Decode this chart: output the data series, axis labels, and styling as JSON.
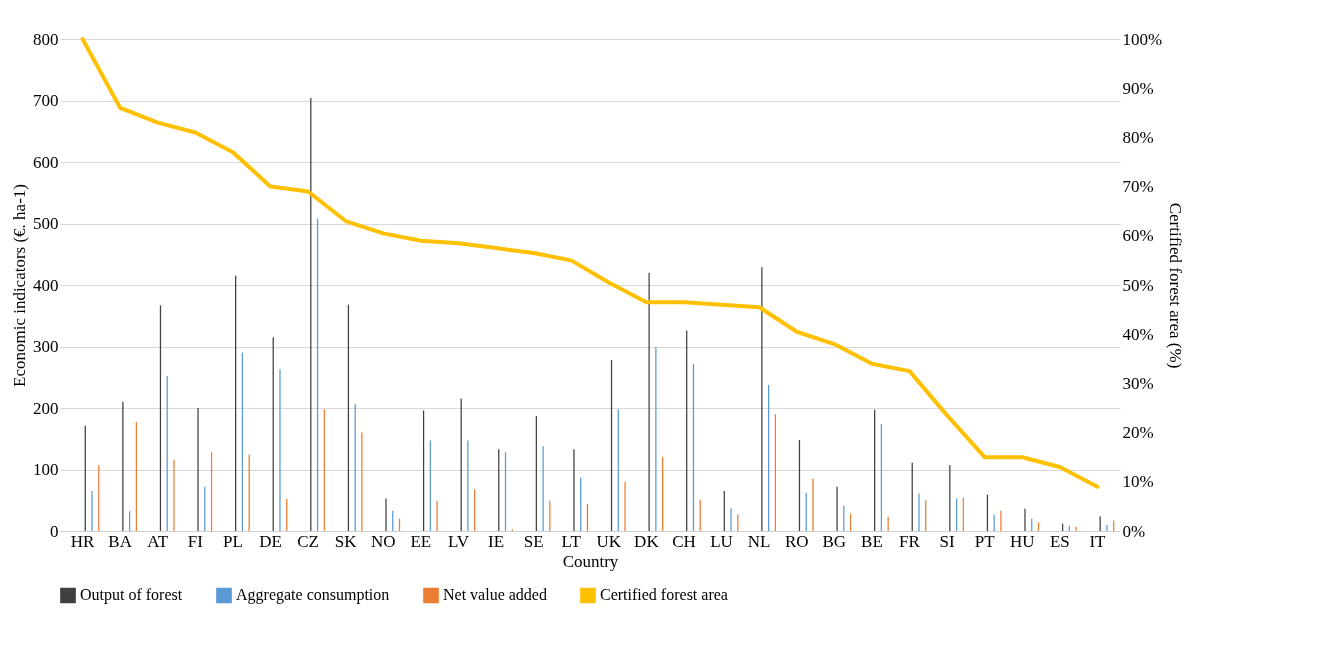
{
  "chart_data": {
    "type": "bar",
    "xlabel": "Country",
    "ylabel": "Economic indicators (€. ha-1)",
    "y2label": "Certified forest area (%)",
    "categories": [
      "HR",
      "BA",
      "AT",
      "FI",
      "PL",
      "DE",
      "CZ",
      "SK",
      "NO",
      "EE",
      "LV",
      "IE",
      "SE",
      "LT",
      "UK",
      "DK",
      "CH",
      "LU",
      "NL",
      "RO",
      "BG",
      "BE",
      "FR",
      "SI",
      "PT",
      "HU",
      "ES",
      "IT"
    ],
    "series": [
      {
        "name": "Output of forest",
        "color": "#404040",
        "values": [
          171,
          210,
          367,
          200,
          415,
          315,
          704,
          368,
          53,
          196,
          215,
          133,
          187,
          133,
          278,
          420,
          326,
          65,
          429,
          148,
          72,
          197,
          111,
          107,
          59,
          36,
          12,
          24
        ]
      },
      {
        "name": "Aggregate consumption",
        "color": "#5b9bd5",
        "values": [
          65,
          32,
          252,
          72,
          290,
          263,
          508,
          207,
          33,
          147,
          147,
          128,
          138,
          87,
          198,
          299,
          272,
          37,
          238,
          62,
          41,
          174,
          61,
          53,
          27,
          20,
          8,
          10
        ]
      },
      {
        "name": "Net value added",
        "color": "#ed7d31",
        "values": [
          107,
          177,
          116,
          128,
          124,
          52,
          198,
          160,
          20,
          49,
          68,
          3,
          49,
          44,
          80,
          120,
          51,
          27,
          190,
          85,
          28,
          23,
          50,
          54,
          33,
          14,
          7,
          17
        ]
      },
      {
        "name": "Certified forest area",
        "color": "#ffc000",
        "type": "line",
        "axis": "y2",
        "values": [
          100,
          86,
          83,
          81,
          77,
          70,
          69,
          63,
          60.5,
          59,
          58.5,
          57.5,
          56.5,
          55,
          50.5,
          46.5,
          46.5,
          46,
          45.5,
          40.5,
          38,
          34,
          32.5,
          23.5,
          15,
          15,
          13,
          9
        ]
      }
    ],
    "ylim": [
      0,
      800
    ],
    "yticks": [
      0,
      100,
      200,
      300,
      400,
      500,
      600,
      700,
      800
    ],
    "y2lim": [
      0,
      100
    ],
    "y2ticks": [
      {
        "value": 0,
        "label": "0%"
      },
      {
        "value": 10,
        "label": "10%"
      },
      {
        "value": 20,
        "label": "20%"
      },
      {
        "value": 30,
        "label": "30%"
      },
      {
        "value": 40,
        "label": "40%"
      },
      {
        "value": 50,
        "label": "50%"
      },
      {
        "value": 60,
        "label": "60%"
      },
      {
        "value": 70,
        "label": "70%"
      },
      {
        "value": 80,
        "label": "80%"
      },
      {
        "value": 90,
        "label": "90%"
      },
      {
        "value": 100,
        "label": "100%"
      }
    ],
    "grid": "y",
    "legend": "bottom"
  }
}
